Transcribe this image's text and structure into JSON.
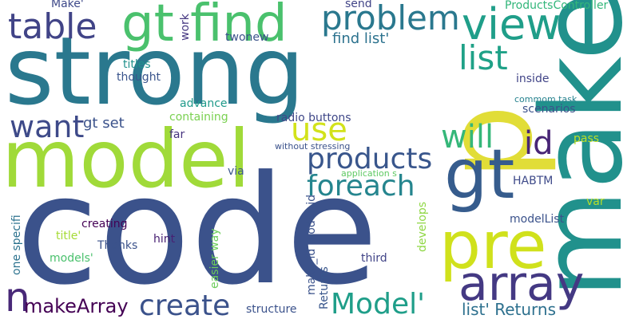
{
  "words": [
    {
      "key": "code",
      "text": "code",
      "color": "#3b528b",
      "vertical": false
    },
    {
      "key": "strong",
      "text": "strong",
      "color": "#2a788e",
      "vertical": false
    },
    {
      "key": "make",
      "text": "make",
      "color": "#21918c",
      "vertical": true
    },
    {
      "key": "model",
      "text": "model",
      "color": "#a0da39",
      "vertical": false
    },
    {
      "key": "p",
      "text": "p",
      "color": "#e1dd37",
      "vertical": true
    },
    {
      "key": "gt_find",
      "text": "gt find",
      "color": "#4ac16d",
      "vertical": false
    },
    {
      "key": "pre",
      "text": "pre",
      "color": "#d0e11c",
      "vertical": false
    },
    {
      "key": "gt",
      "text": "gt",
      "color": "#365c8d",
      "vertical": false
    },
    {
      "key": "array",
      "text": "array",
      "color": "#443983",
      "vertical": false
    },
    {
      "key": "view",
      "text": "view",
      "color": "#1f9e89",
      "vertical": false
    },
    {
      "key": "problem",
      "text": "problem",
      "color": "#2a788e",
      "vertical": false
    },
    {
      "key": "table",
      "text": "table",
      "color": "#414487",
      "vertical": false
    },
    {
      "key": "products",
      "text": "products",
      "color": "#39568c",
      "vertical": false
    },
    {
      "key": "foreach",
      "text": "foreach",
      "color": "#25858e",
      "vertical": false
    },
    {
      "key": "create",
      "text": "create",
      "color": "#3b528b",
      "vertical": false
    },
    {
      "key": "model_quote",
      "text": "Model'",
      "color": "#1f9e89",
      "vertical": false
    },
    {
      "key": "list",
      "text": "list",
      "color": "#1fa187",
      "vertical": false
    },
    {
      "key": "use",
      "text": "use",
      "color": "#d2e21b",
      "vertical": false
    },
    {
      "key": "will",
      "text": "will",
      "color": "#35b779",
      "vertical": false
    },
    {
      "key": "want",
      "text": "want",
      "color": "#3e4a89",
      "vertical": false
    },
    {
      "key": "id",
      "text": "id",
      "color": "#482576",
      "vertical": false
    },
    {
      "key": "n",
      "text": "n",
      "color": "#482878",
      "vertical": false
    },
    {
      "key": "makeArray",
      "text": "makeArray",
      "color": "#440154",
      "vertical": false
    },
    {
      "key": "list_returns",
      "text": "list' Returns",
      "color": "#2d708e",
      "vertical": false
    },
    {
      "key": "find_list",
      "text": "find list'",
      "color": "#2c728e",
      "vertical": false
    },
    {
      "key": "gt_set",
      "text": "gt set",
      "color": "#3b528b",
      "vertical": false
    },
    {
      "key": "make_quote",
      "text": "Make'",
      "color": "#3e4989",
      "vertical": false
    },
    {
      "key": "send",
      "text": "send",
      "color": "#414487",
      "vertical": false
    },
    {
      "key": "products_controller",
      "text": "ProductsController",
      "color": "#32b67a",
      "vertical": false
    },
    {
      "key": "work",
      "text": "work",
      "color": "#453781",
      "vertical": true
    },
    {
      "key": "twonew",
      "text": "twonew",
      "color": "#3b528b",
      "vertical": false
    },
    {
      "key": "titles",
      "text": "titles",
      "color": "#21918c",
      "vertical": false
    },
    {
      "key": "thought",
      "text": "thought",
      "color": "#3a548c",
      "vertical": false
    },
    {
      "key": "inside",
      "text": "inside",
      "color": "#414487",
      "vertical": false
    },
    {
      "key": "common_task",
      "text": "commom task",
      "color": "#26828e",
      "vertical": false
    },
    {
      "key": "advance",
      "text": "advance",
      "color": "#1f9a8a",
      "vertical": false
    },
    {
      "key": "containing",
      "text": "containing",
      "color": "#7ad151",
      "vertical": false
    },
    {
      "key": "radio_buttons",
      "text": "radio buttons",
      "color": "#3f4788",
      "vertical": false
    },
    {
      "key": "scenarios",
      "text": "scenarios",
      "color": "#3b528b",
      "vertical": false
    },
    {
      "key": "far",
      "text": "far",
      "color": "#46337f",
      "vertical": false
    },
    {
      "key": "without_stressing",
      "text": "without stressing",
      "color": "#3b528b",
      "vertical": false
    },
    {
      "key": "pass",
      "text": "pass",
      "color": "#bddf26",
      "vertical": false
    },
    {
      "key": "via",
      "text": "via",
      "color": "#39568c",
      "vertical": false
    },
    {
      "key": "application_s",
      "text": "application s",
      "color": "#5ec962",
      "vertical": false
    },
    {
      "key": "habtm",
      "text": "HABTM",
      "color": "#3e4a89",
      "vertical": false
    },
    {
      "key": "var",
      "text": "var",
      "color": "#b5de2b",
      "vertical": false
    },
    {
      "key": "modelList",
      "text": "modelList",
      "color": "#3b528b",
      "vertical": false
    },
    {
      "key": "one_specifi",
      "text": "one specifi",
      "color": "#2c728e",
      "vertical": true
    },
    {
      "key": "creating",
      "text": "creating",
      "color": "#440154",
      "vertical": false
    },
    {
      "key": "title_quote",
      "text": "title'",
      "color": "#a5db36",
      "vertical": false
    },
    {
      "key": "thanks",
      "text": "Thanks",
      "color": "#3b528b",
      "vertical": false
    },
    {
      "key": "models_quote",
      "text": "models'",
      "color": "#4ac16d",
      "vertical": false
    },
    {
      "key": "hint",
      "text": "hint",
      "color": "#482173",
      "vertical": false
    },
    {
      "key": "easier_way",
      "text": "easier way",
      "color": "#6ccd5a",
      "vertical": true
    },
    {
      "key": "make_id_model_id",
      "text": "make_id model_id",
      "color": "#3b528b",
      "vertical": true
    },
    {
      "key": "returns",
      "text": "Returns",
      "color": "#39568c",
      "vertical": true
    },
    {
      "key": "third",
      "text": "third",
      "color": "#414487",
      "vertical": false
    },
    {
      "key": "develops",
      "text": "develops",
      "color": "#8fd744",
      "vertical": true
    },
    {
      "key": "structure",
      "text": "structure",
      "color": "#3b528b",
      "vertical": false
    }
  ]
}
